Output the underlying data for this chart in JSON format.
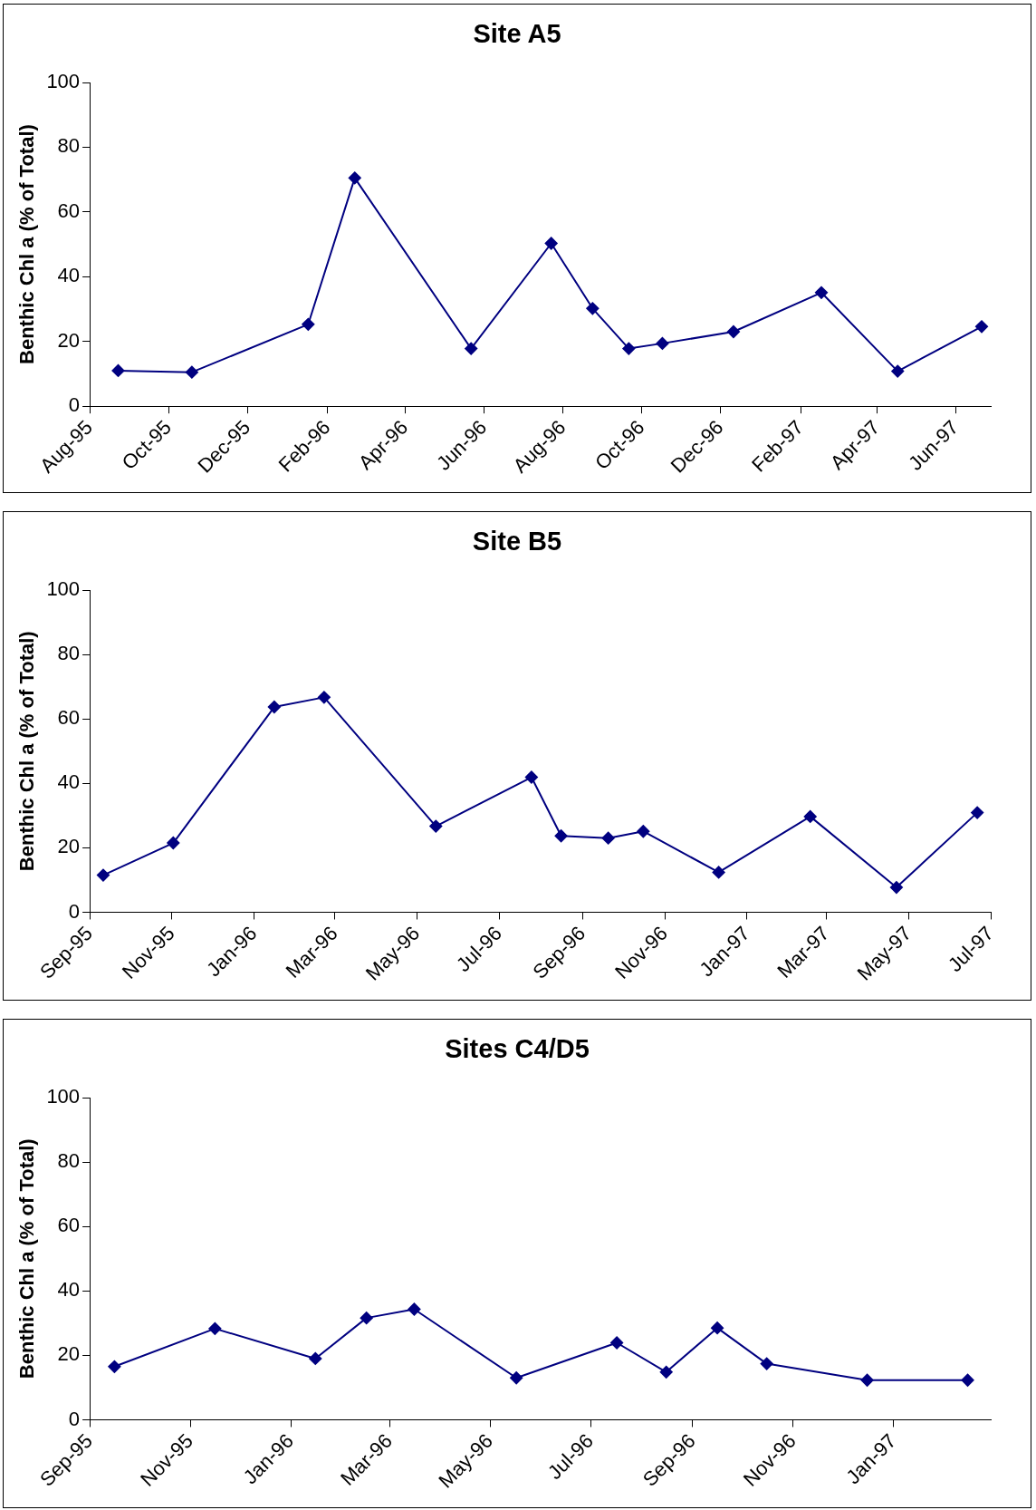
{
  "chart_data": [
    {
      "type": "line",
      "title": "Site A5",
      "ylabel": "Benthic Chl a (% of Total)",
      "marker": "diamond",
      "line_style": "solid",
      "grid": false,
      "legend": false,
      "xlim": [
        "1995-08-01",
        "1997-06-28"
      ],
      "ylim": [
        0,
        100
      ],
      "yticks": [
        0,
        20,
        40,
        60,
        80,
        100
      ],
      "xticks": [
        {
          "value": "1995-08-01",
          "label": "Aug-95"
        },
        {
          "value": "1995-10-01",
          "label": "Oct-95"
        },
        {
          "value": "1995-12-01",
          "label": "Dec-95"
        },
        {
          "value": "1996-02-01",
          "label": "Feb-96"
        },
        {
          "value": "1996-04-01",
          "label": "Apr-96"
        },
        {
          "value": "1996-06-01",
          "label": "Jun-96"
        },
        {
          "value": "1996-08-01",
          "label": "Aug-96"
        },
        {
          "value": "1996-10-01",
          "label": "Oct-96"
        },
        {
          "value": "1996-12-01",
          "label": "Dec-96"
        },
        {
          "value": "1997-02-01",
          "label": "Feb-97"
        },
        {
          "value": "1997-04-01",
          "label": "Apr-97"
        },
        {
          "value": "1997-06-01",
          "label": "Jun-97"
        }
      ],
      "x": [
        "1995-08-23",
        "1995-10-19",
        "1996-01-17",
        "1996-02-22",
        "1996-05-22",
        "1996-07-23",
        "1996-08-24",
        "1996-09-21",
        "1996-10-17",
        "1996-12-11",
        "1997-02-17",
        "1997-04-17",
        "1997-06-21"
      ],
      "series": [
        {
          "color": "#000080",
          "values": [
            11,
            10.5,
            25.3,
            70.5,
            17.8,
            50.3,
            30.2,
            17.8,
            19.4,
            23,
            35.1,
            10.8,
            24.6
          ]
        }
      ]
    },
    {
      "type": "line",
      "title": "Site B5",
      "ylabel": "Benthic Chl a (% of Total)",
      "marker": "diamond",
      "line_style": "solid",
      "grid": false,
      "legend": false,
      "xlim": [
        "1995-09-01",
        "1997-07-01"
      ],
      "ylim": [
        0,
        100
      ],
      "yticks": [
        0,
        20,
        40,
        60,
        80,
        100
      ],
      "xticks": [
        {
          "value": "1995-09-01",
          "label": "Sep-95"
        },
        {
          "value": "1995-11-01",
          "label": "Nov-95"
        },
        {
          "value": "1996-01-01",
          "label": "Jan-96"
        },
        {
          "value": "1996-03-01",
          "label": "Mar-96"
        },
        {
          "value": "1996-05-01",
          "label": "May-96"
        },
        {
          "value": "1996-07-01",
          "label": "Jul-96"
        },
        {
          "value": "1996-09-01",
          "label": "Sep-96"
        },
        {
          "value": "1996-11-01",
          "label": "Nov-96"
        },
        {
          "value": "1997-01-01",
          "label": "Jan-97"
        },
        {
          "value": "1997-03-01",
          "label": "Mar-97"
        },
        {
          "value": "1997-05-01",
          "label": "May-97"
        },
        {
          "value": "1997-07-01",
          "label": "Jul-97"
        }
      ],
      "x": [
        "1995-09-11",
        "1995-11-02",
        "1996-01-16",
        "1996-02-22",
        "1996-05-15",
        "1996-07-25",
        "1996-08-16",
        "1996-09-20",
        "1996-10-16",
        "1996-12-11",
        "1997-02-17",
        "1997-04-22",
        "1997-06-21"
      ],
      "series": [
        {
          "color": "#000080",
          "values": [
            11.5,
            21.5,
            63.7,
            66.7,
            26.7,
            41.9,
            23.7,
            23,
            25.1,
            12.4,
            29.7,
            7.7,
            30.9
          ]
        }
      ]
    },
    {
      "type": "line",
      "title": "Sites C4/D5",
      "ylabel": "Benthic Chl a (% of Total)",
      "marker": "diamond",
      "line_style": "solid",
      "grid": false,
      "legend": false,
      "xlim": [
        "1995-09-01",
        "1997-03-01"
      ],
      "ylim": [
        0,
        100
      ],
      "yticks": [
        0,
        20,
        40,
        60,
        80,
        100
      ],
      "xticks": [
        {
          "value": "1995-09-01",
          "label": "Sep-95"
        },
        {
          "value": "1995-11-01",
          "label": "Nov-95"
        },
        {
          "value": "1996-01-01",
          "label": "Jan-96"
        },
        {
          "value": "1996-03-01",
          "label": "Mar-96"
        },
        {
          "value": "1996-05-01",
          "label": "May-96"
        },
        {
          "value": "1996-07-01",
          "label": "Jul-96"
        },
        {
          "value": "1996-09-01",
          "label": "Sep-96"
        },
        {
          "value": "1996-11-01",
          "label": "Nov-96"
        },
        {
          "value": "1997-01-01",
          "label": "Jan-97"
        }
      ],
      "x": [
        "1995-09-16",
        "1995-11-16",
        "1996-01-16",
        "1996-02-16",
        "1996-03-16",
        "1996-05-17",
        "1996-07-17",
        "1996-08-16",
        "1996-09-16",
        "1996-10-16",
        "1996-12-16",
        "1997-02-15"
      ],
      "series": [
        {
          "color": "#000080",
          "values": [
            16.5,
            28.3,
            19,
            31.6,
            34.3,
            13,
            23.9,
            14.8,
            28.5,
            17.4,
            12.3,
            12.3
          ]
        }
      ]
    }
  ]
}
